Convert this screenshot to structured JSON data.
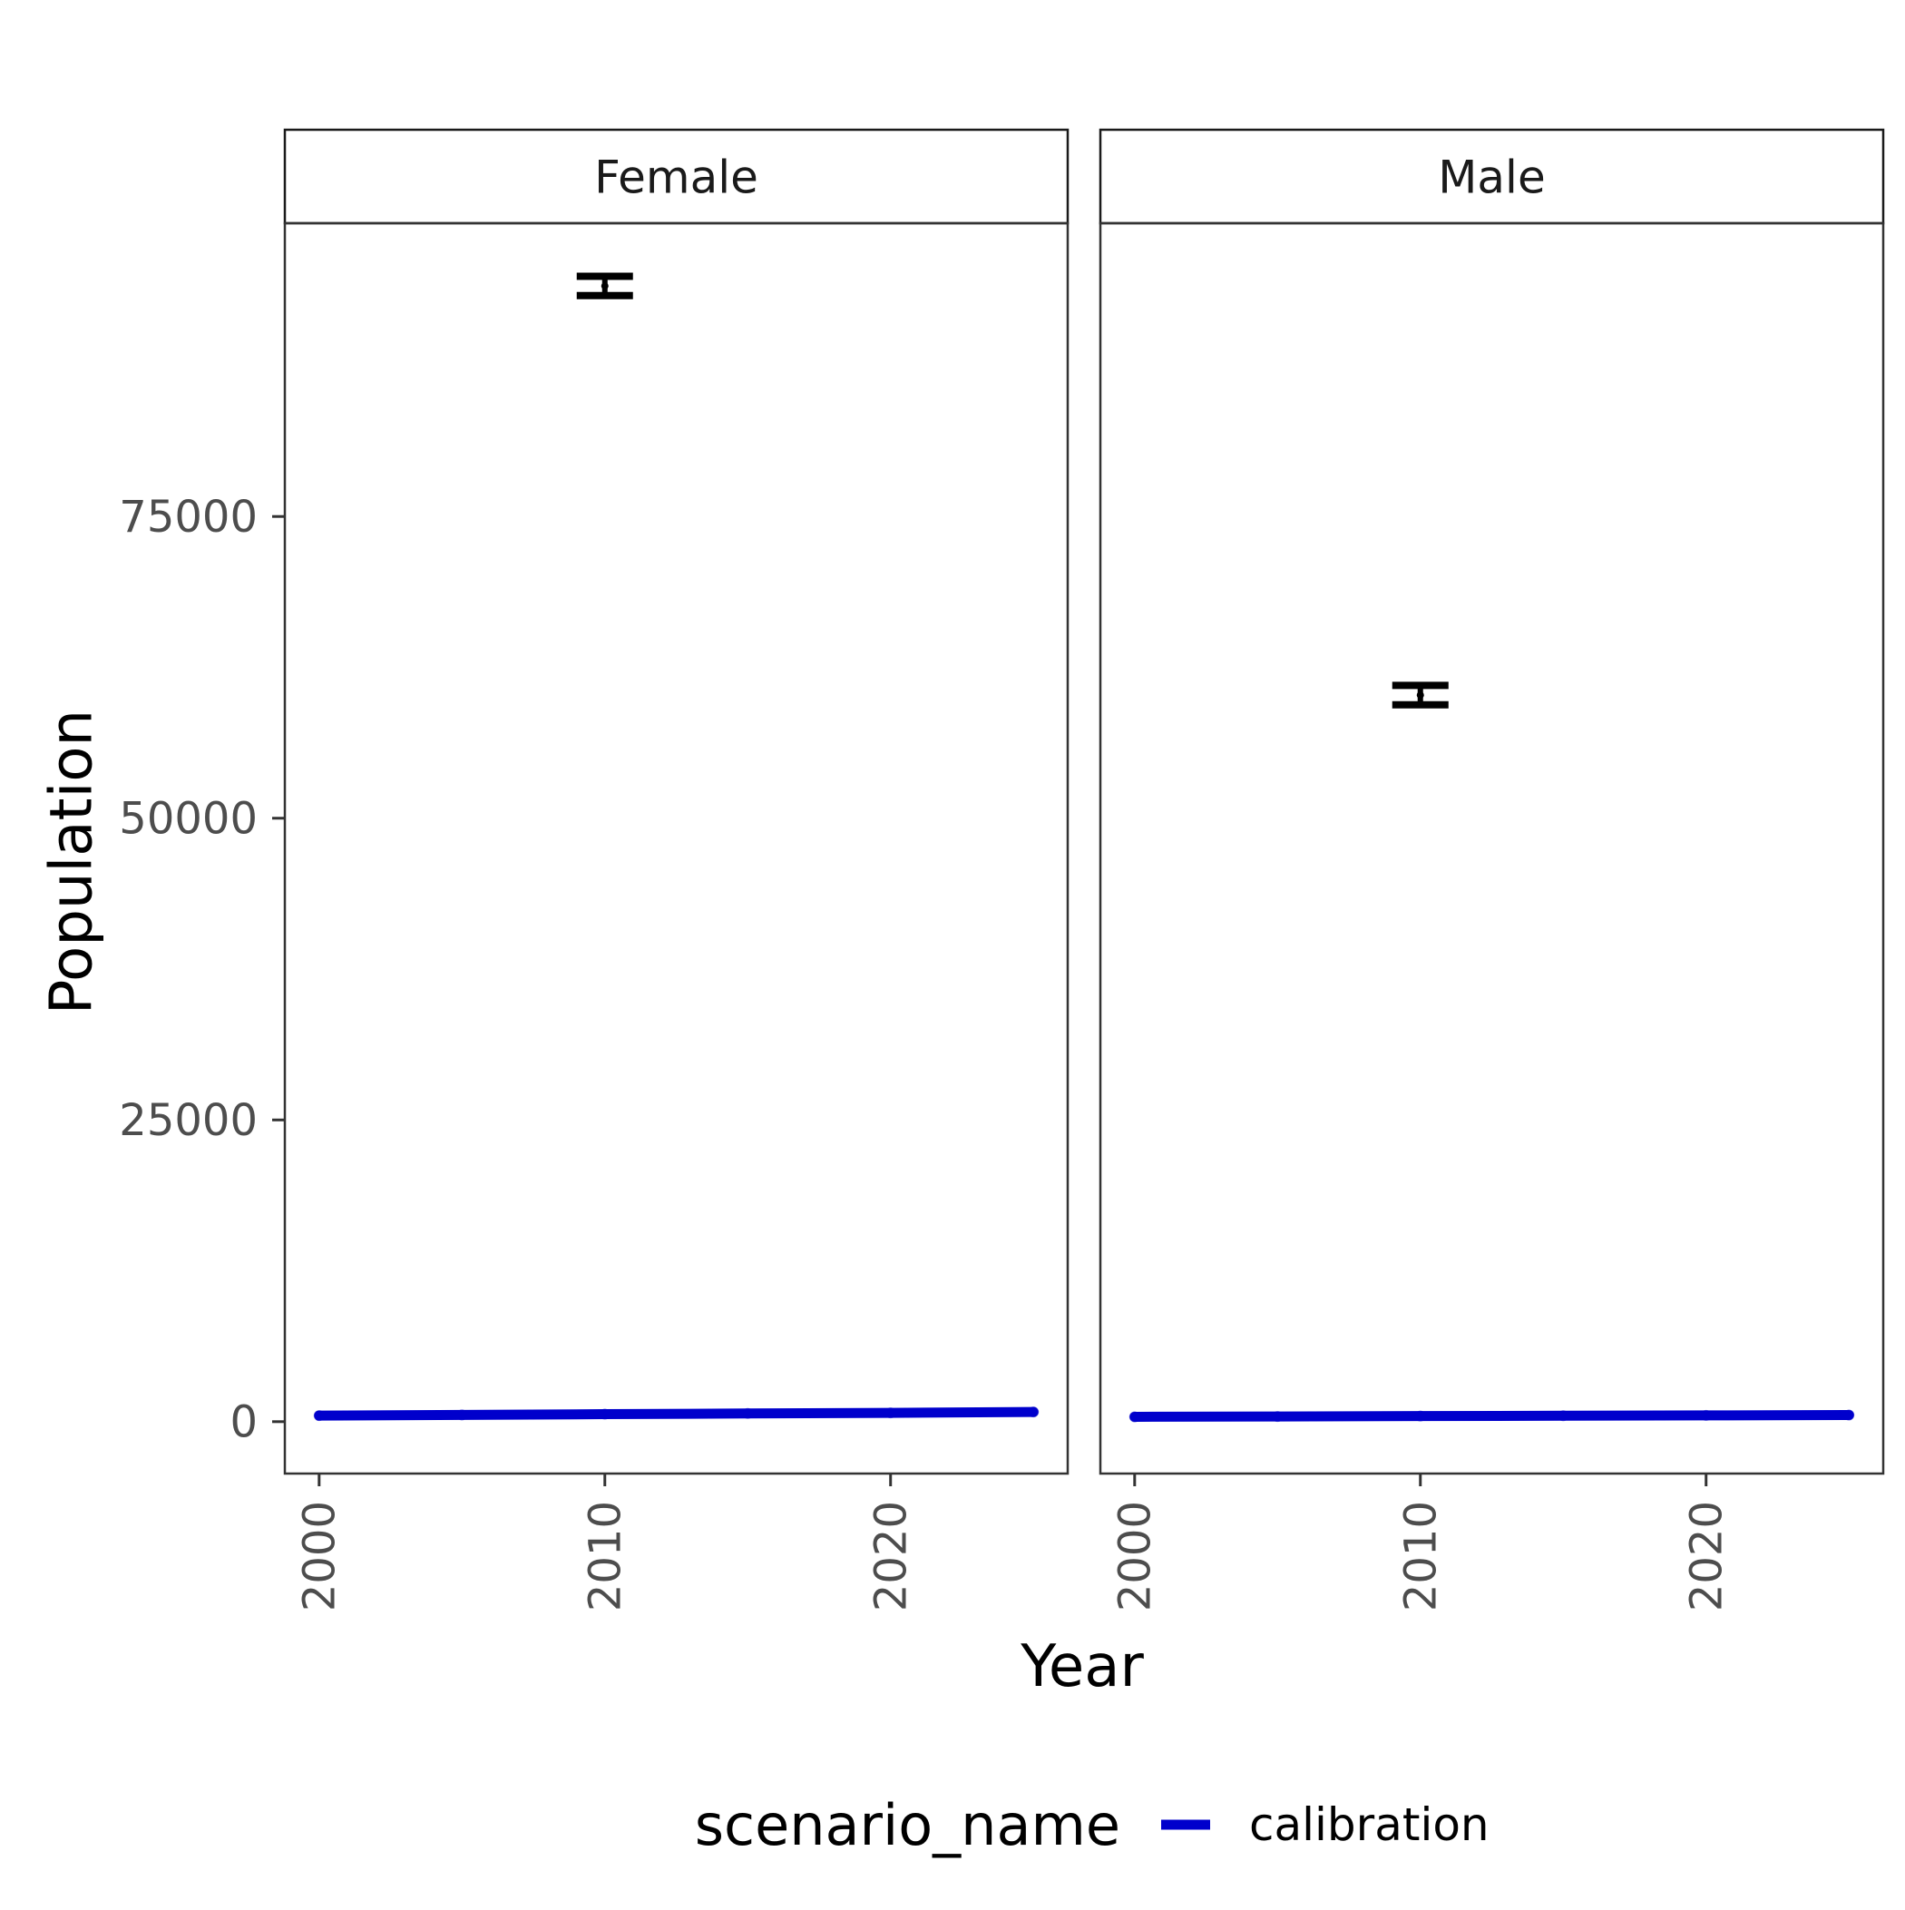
{
  "chart_data": {
    "type": "line",
    "xlabel": "Year",
    "ylabel": "Population",
    "xlim": [
      1998.8,
      2026.2
    ],
    "ylim": [
      -4300,
      99300
    ],
    "x_ticks": [
      2000,
      2010,
      2020
    ],
    "y_ticks": [
      0,
      25000,
      50000,
      75000
    ],
    "x_tick_labels": [
      "2000",
      "2010",
      "2020"
    ],
    "y_tick_labels": [
      "0",
      "25000",
      "50000",
      "75000"
    ],
    "legend": {
      "title": "scenario_name",
      "position": "bottom",
      "entries": [
        {
          "label": "calibration",
          "color": "#0000cc"
        }
      ]
    },
    "panels": [
      {
        "strip_label": "Female",
        "series": [
          {
            "name": "calibration",
            "color": "#0000cc",
            "x": [
              2000,
              2005,
              2010,
              2015,
              2020,
              2025
            ],
            "y": [
              500,
              560,
              620,
              680,
              730,
              800
            ]
          }
        ],
        "observations": [
          {
            "x": 2010,
            "y": 94100,
            "ymin": 93300,
            "ymax": 94900,
            "color": "#000000"
          }
        ]
      },
      {
        "strip_label": "Male",
        "series": [
          {
            "name": "calibration",
            "color": "#0000cc",
            "x": [
              2000,
              2005,
              2010,
              2015,
              2020,
              2025
            ],
            "y": [
              400,
              430,
              460,
              490,
              520,
              550
            ]
          }
        ],
        "observations": [
          {
            "x": 2010,
            "y": 60200,
            "ymin": 59400,
            "ymax": 61000,
            "color": "#000000"
          }
        ]
      }
    ]
  }
}
